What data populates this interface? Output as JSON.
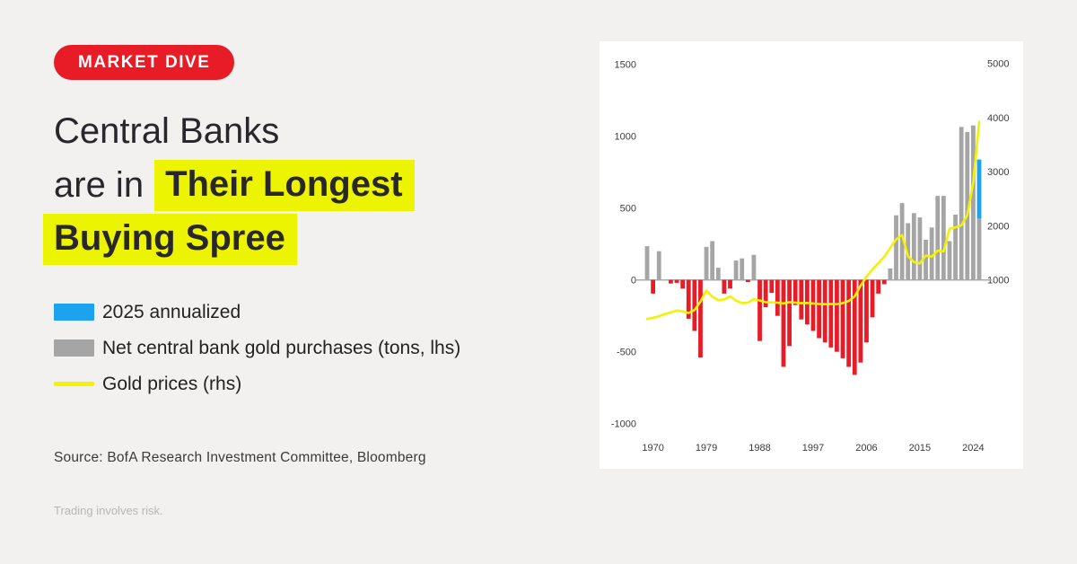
{
  "badge": {
    "label": "MARKET DIVE",
    "bg": "#e81c26",
    "text_color": "#ffffff"
  },
  "title": {
    "line1": "Central Banks",
    "line2_plain": "are in",
    "line2_highlight": "Their Longest",
    "line3_highlight": "Buying Spree",
    "highlight_color": "#ecf402",
    "text_color": "#29272c"
  },
  "legend": {
    "items": [
      {
        "label": "2025 annualized",
        "color": "#1da2f0",
        "swatch": "bar"
      },
      {
        "label": "Net central bank gold purchases (tons, lhs)",
        "color": "#a5a5a5",
        "swatch": "bar"
      },
      {
        "label": "Gold prices (rhs)",
        "color": "#f2f202",
        "swatch": "line"
      }
    ]
  },
  "source": "Source: BofA Research Investment Committee, Bloomberg",
  "disclaimer": "Trading involves risk.",
  "chart_data": {
    "type": "bar+line",
    "title": "",
    "xlabel": "",
    "ylabel_left": "Net central bank gold purchases (tons, lhs)",
    "ylabel_right": "Gold prices (rhs)",
    "grid": false,
    "legend_position": "outside-left",
    "years": [
      1969,
      1970,
      1971,
      1972,
      1973,
      1974,
      1975,
      1976,
      1977,
      1978,
      1979,
      1980,
      1981,
      1982,
      1983,
      1984,
      1985,
      1986,
      1987,
      1988,
      1989,
      1990,
      1991,
      1992,
      1993,
      1994,
      1995,
      1996,
      1997,
      1998,
      1999,
      2000,
      2001,
      2002,
      2003,
      2004,
      2005,
      2006,
      2007,
      2008,
      2009,
      2010,
      2011,
      2012,
      2013,
      2014,
      2015,
      2016,
      2017,
      2018,
      2019,
      2020,
      2021,
      2022,
      2023,
      2024,
      2025
    ],
    "bar_series": {
      "name": "Net central bank gold purchases (tons, lhs)",
      "values": [
        235,
        -95,
        200,
        0,
        -25,
        -20,
        -60,
        -270,
        -355,
        -540,
        230,
        270,
        85,
        -95,
        -60,
        135,
        150,
        -15,
        175,
        -425,
        -190,
        -90,
        -250,
        -605,
        -460,
        -175,
        -275,
        -310,
        -355,
        -405,
        -435,
        -470,
        -500,
        -545,
        -605,
        -660,
        -575,
        -435,
        -260,
        -95,
        -30,
        80,
        450,
        535,
        395,
        465,
        435,
        280,
        365,
        585,
        585,
        270,
        455,
        1065,
        1030,
        1075,
        838
      ]
    },
    "bar_2025": {
      "year": 2025,
      "actual": 427,
      "annualized_total": 838,
      "color": "#1da2f0"
    },
    "line_series": {
      "name": "Gold prices (rhs)",
      "color": "#f2f202",
      "values": [
        280,
        300,
        330,
        370,
        400,
        435,
        420,
        390,
        445,
        600,
        805,
        690,
        625,
        640,
        695,
        620,
        570,
        580,
        645,
        620,
        590,
        585,
        578,
        565,
        590,
        580,
        570,
        575,
        565,
        558,
        552,
        558,
        552,
        572,
        610,
        695,
        895,
        1060,
        1195,
        1310,
        1430,
        1590,
        1750,
        1830,
        1440,
        1330,
        1305,
        1450,
        1430,
        1540,
        1525,
        1945,
        1970,
        2010,
        2195,
        2800,
        3920
      ]
    },
    "bar_positive_color": "#a5a5a5",
    "bar_negative_color": "#e81c26",
    "zero_line_color": "#aaaaaa",
    "lhs_ticks": [
      1500,
      1000,
      500,
      0,
      -500,
      -1000
    ],
    "rhs_ticks": [
      5000,
      4000,
      3000,
      2000,
      1000
    ],
    "x_ticks": [
      1970,
      1979,
      1988,
      1997,
      2006,
      2015,
      2024
    ],
    "lhs_range": [
      -1000,
      1500
    ],
    "rhs_range": [
      1000,
      5000
    ]
  }
}
